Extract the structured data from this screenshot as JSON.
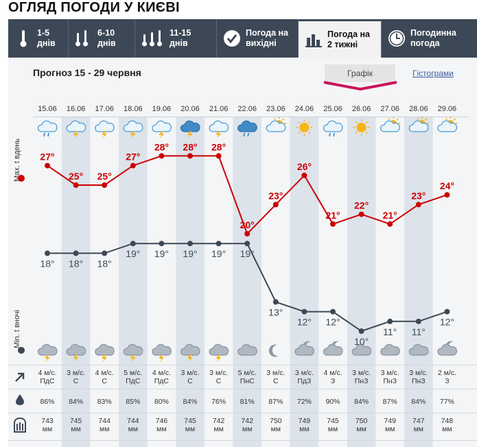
{
  "page": {
    "title": "ОГЛЯД ПОГОДИ У КИЄВІ",
    "tabs": [
      {
        "line1": "1-5",
        "line2": "днів",
        "icon": "thermometer-icon"
      },
      {
        "line1": "6-10",
        "line2": "днів",
        "icon": "thermometers-icon"
      },
      {
        "line1": "11-15",
        "line2": "днів",
        "icon": "thermometers-icon"
      },
      {
        "line1": "Погода на",
        "line2": "вихідні",
        "icon": "checkmark-icon"
      },
      {
        "line1": "Погода на",
        "line2": "2 тижні",
        "icon": "bar-chart-icon"
      },
      {
        "line1": "Погодинна",
        "line2": "погода",
        "icon": "clock-icon"
      }
    ],
    "subtitle": "Прогноз 15 - 29 червня",
    "view_chart": "Графік",
    "view_hist": "Гістограми",
    "max_label": "Max. t вдень",
    "min_label": "Min. t вночі"
  },
  "chart_data": {
    "type": "line",
    "x": [
      "15.06",
      "16.06",
      "17.06",
      "18.06",
      "19.06",
      "20.06",
      "21.06",
      "22.06",
      "23.06",
      "24.06",
      "25.06",
      "26.06",
      "27.06",
      "28.06",
      "29.06"
    ],
    "series": [
      {
        "name": "Max. t вдень",
        "values": [
          27,
          25,
          25,
          27,
          28,
          28,
          28,
          20,
          23,
          26,
          21,
          22,
          21,
          23,
          24
        ],
        "color": "#cc0000"
      },
      {
        "name": "Min. t вночі",
        "values": [
          18,
          18,
          18,
          19,
          19,
          19,
          19,
          19,
          13,
          12,
          12,
          10,
          11,
          11,
          12
        ],
        "color": "#3d4856"
      }
    ],
    "day_icons": [
      "cloud-rain-icon",
      "cloud-storm-icon",
      "cloud-storm-icon",
      "cloud-storm-icon",
      "cloud-storm-icon",
      "dark-cloud-storm-icon",
      "cloud-storm-icon",
      "dark-cloud-rain-icon",
      "sun-cloud-icon",
      "sun-icon",
      "cloud-rain-icon",
      "sun-icon",
      "sun-cloud-icon",
      "sun-cloud-icon",
      "sun-cloud-icon"
    ],
    "night_icons": [
      "cloud-storm-icon",
      "cloud-storm-icon",
      "cloud-storm-icon",
      "cloud-storm-icon",
      "cloud-storm-icon",
      "cloud-storm-icon",
      "cloud-storm-icon",
      "cloud-icon",
      "moon-icon",
      "moon-cloud-icon",
      "moon-cloud-icon",
      "cloud-icon",
      "cloud-icon",
      "cloud-icon",
      "moon-cloud-icon"
    ],
    "wind": [
      {
        "speed": "4 м/с.",
        "dir": "ПдС"
      },
      {
        "speed": "3 м/с.",
        "dir": "С"
      },
      {
        "speed": "4 м/с.",
        "dir": "С"
      },
      {
        "speed": "5 м/с.",
        "dir": "ПдС"
      },
      {
        "speed": "4 м/с.",
        "dir": "ПдС"
      },
      {
        "speed": "3 м/с.",
        "dir": "С"
      },
      {
        "speed": "3 м/с.",
        "dir": "С"
      },
      {
        "speed": "5 м/с.",
        "dir": "ПнС"
      },
      {
        "speed": "3 м/с.",
        "dir": "С"
      },
      {
        "speed": "3 м/с.",
        "dir": "ПдЗ"
      },
      {
        "speed": "4 м/с.",
        "dir": "З"
      },
      {
        "speed": "3 м/с.",
        "dir": "ПнЗ"
      },
      {
        "speed": "3 м/с.",
        "dir": "ПнЗ"
      },
      {
        "speed": "3 м/с.",
        "dir": "ПнЗ"
      },
      {
        "speed": "2 м/с.",
        "dir": "З"
      }
    ],
    "humidity": [
      "86%",
      "84%",
      "83%",
      "85%",
      "80%",
      "84%",
      "76%",
      "81%",
      "87%",
      "72%",
      "90%",
      "84%",
      "87%",
      "84%",
      "77%"
    ],
    "pressure": [
      "743",
      "745",
      "744",
      "744",
      "746",
      "745",
      "742",
      "742",
      "750",
      "749",
      "745",
      "750",
      "749",
      "747",
      "748"
    ],
    "pressure_unit": "мм",
    "colors": {
      "max": "#cc0000",
      "min": "#3d4856",
      "stripe": "#dde3ea",
      "accent": "#c8145a"
    }
  }
}
